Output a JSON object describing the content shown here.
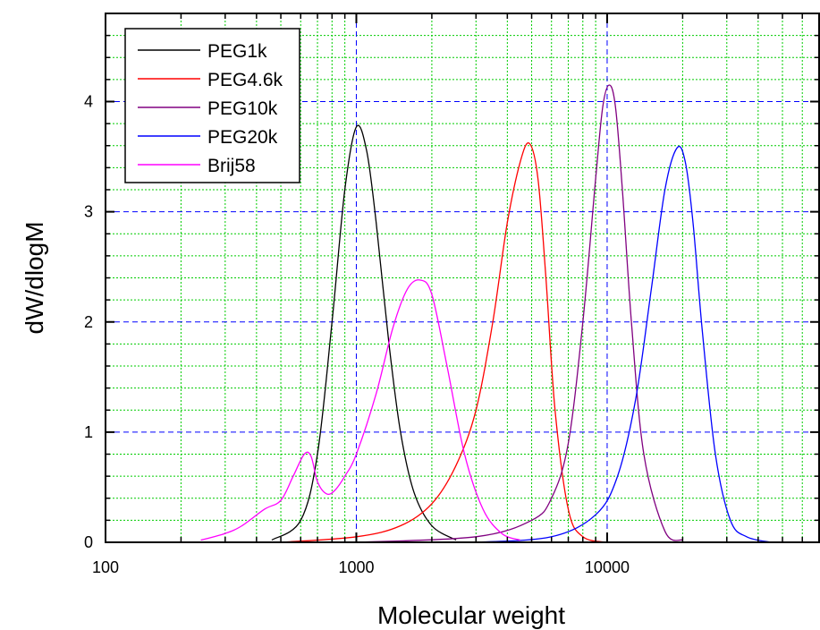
{
  "chart_data": {
    "type": "line",
    "xscale": "log",
    "xlabel": "Molecular weight",
    "ylabel": "dW/dlogM",
    "xlim": [
      100,
      70000
    ],
    "ylim": [
      0,
      4.8
    ],
    "x_ticks": [
      100,
      1000,
      10000
    ],
    "x_tick_labels": [
      "100",
      "1000",
      "10000"
    ],
    "y_ticks": [
      0,
      1,
      2,
      3,
      4
    ],
    "y_tick_labels": [
      "0",
      "1",
      "2",
      "3",
      "4"
    ],
    "grid": "on (major dashed blue, minor dotted green)",
    "legend_position": "top-left",
    "series": [
      {
        "name": "PEG1k",
        "color": "#000000",
        "x": [
          460,
          600,
          700,
          800,
          900,
          1000,
          1100,
          1200,
          1350,
          1500,
          1700,
          2000,
          2500
        ],
        "y": [
          0.02,
          0.2,
          0.8,
          2.0,
          3.2,
          3.77,
          3.55,
          2.9,
          1.8,
          1.0,
          0.45,
          0.15,
          0.02
        ]
      },
      {
        "name": "PEG4.6k",
        "color": "#ff0000",
        "x": [
          500,
          1000,
          1500,
          2000,
          2500,
          3000,
          3500,
          4000,
          4500,
          4900,
          5300,
          5700,
          6200,
          7000,
          8000,
          10000
        ],
        "y": [
          0.0,
          0.05,
          0.15,
          0.35,
          0.7,
          1.2,
          2.0,
          2.9,
          3.45,
          3.62,
          3.3,
          2.4,
          1.2,
          0.3,
          0.05,
          0.0
        ]
      },
      {
        "name": "PEG10k",
        "color": "#800080",
        "x": [
          1000,
          3000,
          5000,
          6000,
          7000,
          8000,
          9000,
          9600,
          10200,
          10800,
          11500,
          12500,
          14000,
          17000,
          20000
        ],
        "y": [
          0.0,
          0.05,
          0.2,
          0.4,
          0.9,
          2.0,
          3.3,
          3.95,
          4.15,
          3.95,
          3.2,
          2.0,
          0.8,
          0.1,
          0.02
        ]
      },
      {
        "name": "PEG20k",
        "color": "#0000ff",
        "x": [
          3000,
          6000,
          9000,
          11000,
          13000,
          15000,
          17000,
          19000,
          20500,
          22000,
          24000,
          27000,
          31000,
          36000,
          45000
        ],
        "y": [
          0.0,
          0.05,
          0.25,
          0.6,
          1.3,
          2.3,
          3.2,
          3.58,
          3.45,
          2.9,
          1.9,
          0.8,
          0.2,
          0.05,
          0.0
        ]
      },
      {
        "name": "Brij58",
        "color": "#ff00ff",
        "x": [
          240,
          300,
          350,
          430,
          500,
          560,
          620,
          660,
          700,
          760,
          820,
          900,
          1000,
          1200,
          1400,
          1600,
          1800,
          2000,
          2300,
          2700,
          3200,
          3800,
          4500
        ],
        "y": [
          0.02,
          0.08,
          0.15,
          0.3,
          0.38,
          0.6,
          0.8,
          0.78,
          0.55,
          0.44,
          0.47,
          0.6,
          0.8,
          1.35,
          1.95,
          2.3,
          2.38,
          2.25,
          1.6,
          0.8,
          0.3,
          0.08,
          0.02
        ]
      }
    ]
  }
}
